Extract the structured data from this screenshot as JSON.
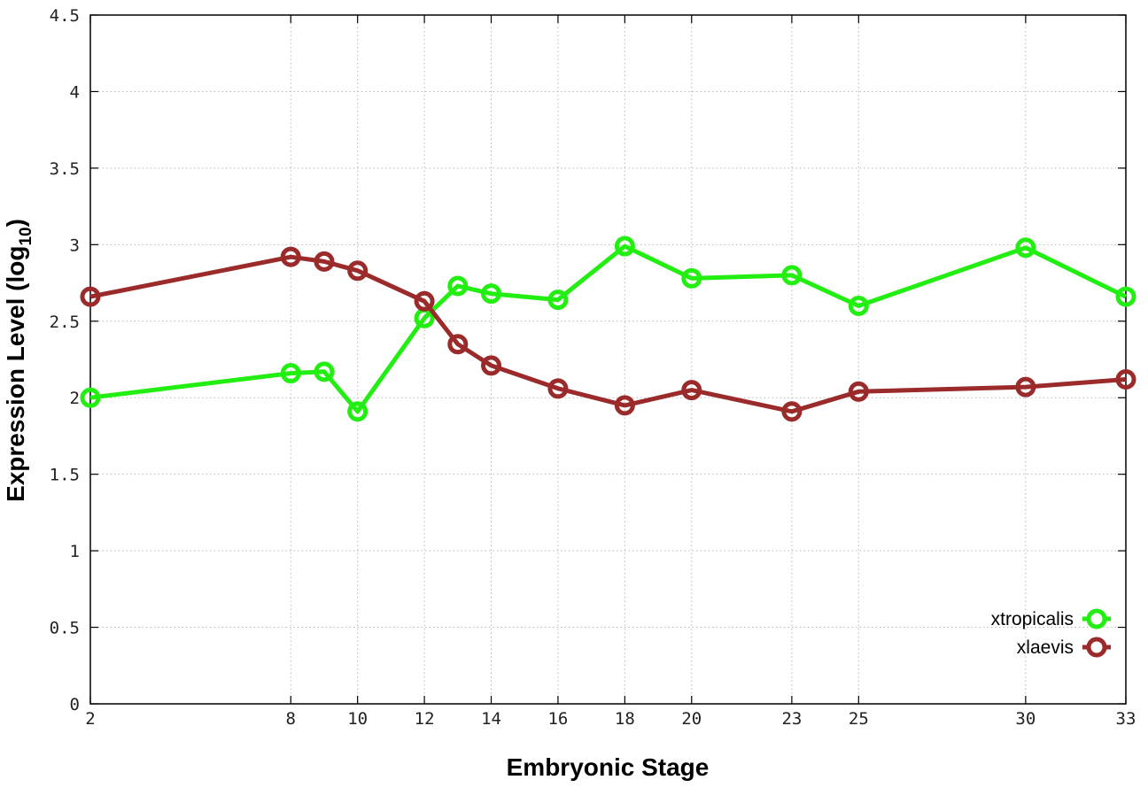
{
  "chart_data": {
    "type": "line",
    "title": "",
    "xlabel": "Embryonic Stage",
    "ylabel_main": "Expression Level (log",
    "ylabel_sub": "10",
    "ylabel_close": ")",
    "x": [
      2,
      8,
      9,
      10,
      12,
      13,
      14,
      16,
      18,
      20,
      23,
      25,
      30,
      33
    ],
    "x_ticks": [
      2,
      8,
      10,
      12,
      14,
      16,
      18,
      20,
      23,
      25,
      30,
      33
    ],
    "x_tick_labels": [
      "2",
      "8",
      "10",
      "12",
      "14",
      "16",
      "18",
      "20",
      "23",
      "25",
      "30",
      "33"
    ],
    "xlim": [
      2,
      33
    ],
    "ylim": [
      0,
      4.5
    ],
    "y_ticks": [
      0,
      0.5,
      1,
      1.5,
      2,
      2.5,
      3,
      3.5,
      4,
      4.5
    ],
    "y_tick_labels": [
      "0",
      "0.5",
      "1",
      "1.5",
      "2",
      "2.5",
      "3",
      "3.5",
      "4",
      "4.5"
    ],
    "grid": true,
    "legend_position": "bottom-right",
    "series": [
      {
        "name": "xtropicalis",
        "color": "#22ee11",
        "values": [
          2.0,
          2.16,
          2.17,
          1.91,
          2.52,
          2.73,
          2.68,
          2.64,
          2.99,
          2.78,
          2.8,
          2.6,
          2.98,
          2.66
        ]
      },
      {
        "name": "xlaevis",
        "color": "#9b2a2a",
        "values": [
          2.66,
          2.92,
          2.89,
          2.83,
          2.63,
          2.35,
          2.21,
          2.06,
          1.95,
          2.05,
          1.91,
          2.04,
          2.07,
          2.12
        ]
      }
    ]
  }
}
